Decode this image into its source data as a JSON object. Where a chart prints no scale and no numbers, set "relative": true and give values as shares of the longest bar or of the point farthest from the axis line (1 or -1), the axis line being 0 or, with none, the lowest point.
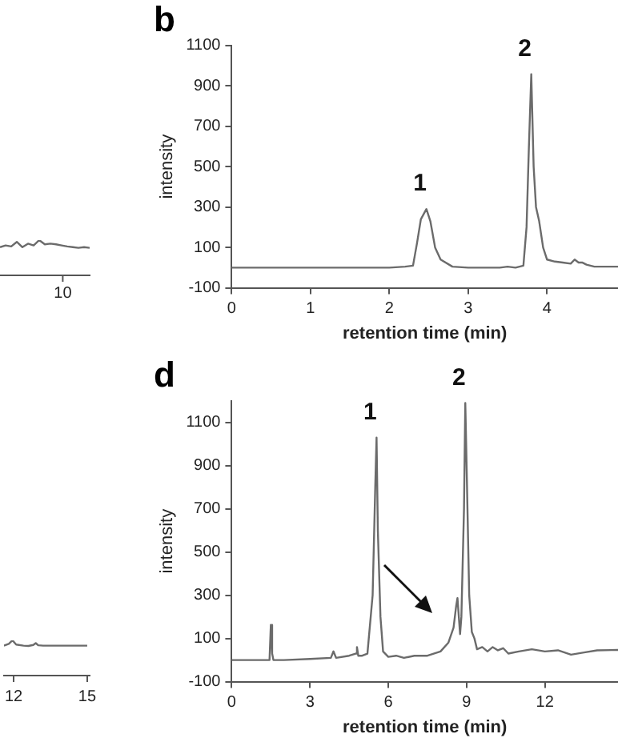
{
  "chart_data": [
    {
      "type": "line",
      "relative": true,
      "color": "#6b6b6b",
      "marker": "none",
      "annotations": [
        "10"
      ],
      "categories": [
        null,
        null,
        null,
        null,
        null,
        null,
        null,
        null,
        null,
        null,
        null,
        null,
        null,
        null,
        null,
        null,
        null
      ],
      "values": [
        0.8,
        0.85,
        0.82,
        0.95,
        0.8,
        0.9,
        0.85,
        1.0,
        0.88,
        0.9,
        0.88,
        0.85,
        0.82,
        0.8,
        0.78,
        0.8,
        0.78
      ]
    },
    {
      "type": "line",
      "title": "b",
      "xlabel": "retention time (min)",
      "ylabel": "intensity",
      "color": "#6b6b6b",
      "marker": "none",
      "xlim": [
        0,
        4.9
      ],
      "xticks": [
        0,
        1,
        2,
        3,
        4
      ],
      "ylim": [
        -100,
        1100
      ],
      "yticks": [
        -100,
        100,
        300,
        500,
        700,
        900,
        1100
      ],
      "x": [
        0,
        0.5,
        1,
        1.5,
        2,
        2.2,
        2.3,
        2.35,
        2.4,
        2.47,
        2.52,
        2.58,
        2.65,
        2.8,
        3.0,
        3.4,
        3.5,
        3.6,
        3.7,
        3.74,
        3.77,
        3.8,
        3.83,
        3.86,
        3.9,
        3.95,
        4.0,
        4.1,
        4.2,
        4.3,
        4.35,
        4.4,
        4.45,
        4.5,
        4.6,
        4.75,
        4.9
      ],
      "values": [
        0,
        0,
        0,
        0,
        0,
        5,
        10,
        120,
        240,
        290,
        230,
        100,
        40,
        5,
        0,
        0,
        5,
        0,
        10,
        200,
        600,
        958,
        500,
        300,
        230,
        100,
        40,
        30,
        25,
        20,
        40,
        25,
        25,
        15,
        5,
        5,
        5
      ],
      "annotations": [
        {
          "text": "1",
          "x": 2.47,
          "y": 290
        },
        {
          "text": "2",
          "x": 3.8,
          "y": 958
        }
      ]
    },
    {
      "type": "line",
      "relative": true,
      "color": "#6b6b6b",
      "marker": "none",
      "xlim": [
        11.6,
        15.1
      ],
      "xticks": [
        12,
        15
      ],
      "x": [
        11.6,
        11.8,
        11.95,
        12.1,
        12.4,
        12.6,
        12.8,
        12.9,
        13.0,
        13.2,
        13.6,
        14.2,
        15.0
      ],
      "values": [
        0.85,
        0.9,
        1.0,
        0.88,
        0.85,
        0.84,
        0.87,
        0.92,
        0.86,
        0.85,
        0.85,
        0.85,
        0.85
      ]
    },
    {
      "type": "line",
      "title": "d",
      "xlabel": "retention time (min)",
      "ylabel": "intensity",
      "color": "#6b6b6b",
      "marker": "none",
      "xlim": [
        0,
        14.8
      ],
      "xticks": [
        0,
        3,
        6,
        9,
        12
      ],
      "ylim": [
        -100,
        1200
      ],
      "yticks": [
        -100,
        100,
        300,
        500,
        700,
        900,
        1100
      ],
      "x": [
        0,
        1,
        1.45,
        1.5,
        1.55,
        1.6,
        2,
        3,
        3.8,
        3.9,
        4.0,
        4.5,
        4.75,
        4.8,
        4.85,
        5.0,
        5.2,
        5.4,
        5.5,
        5.55,
        5.6,
        5.7,
        5.8,
        6.0,
        6.3,
        6.6,
        7,
        7.5,
        8.0,
        8.3,
        8.5,
        8.6,
        8.65,
        8.75,
        8.8,
        8.9,
        8.95,
        9.0,
        9.1,
        9.2,
        9.3,
        9.4,
        9.6,
        9.8,
        10.0,
        10.2,
        10.4,
        10.6,
        11,
        11.5,
        12,
        12.5,
        13,
        13.5,
        14,
        14.8
      ],
      "annotations": [
        {
          "text": "1",
          "x": 5.55,
          "y": 1030
        },
        {
          "text": "2",
          "x": 8.95,
          "y": 1190
        }
      ],
      "values": [
        0,
        0,
        0,
        163,
        30,
        0,
        0,
        5,
        10,
        40,
        10,
        20,
        30,
        60,
        20,
        20,
        30,
        300,
        800,
        1030,
        600,
        200,
        40,
        15,
        20,
        10,
        20,
        20,
        40,
        80,
        150,
        250,
        287,
        120,
        200,
        700,
        1190,
        900,
        300,
        130,
        100,
        50,
        60,
        40,
        60,
        45,
        55,
        30,
        40,
        50,
        40,
        45,
        25,
        35,
        45,
        47
      ]
    }
  ]
}
